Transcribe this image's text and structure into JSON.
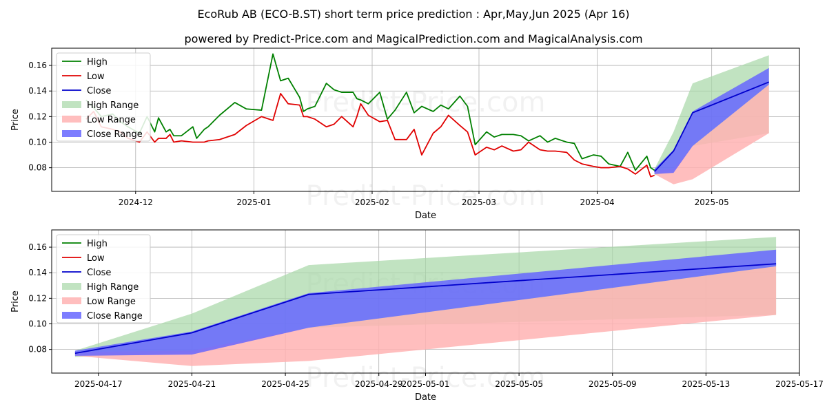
{
  "title": "EcoRub AB (ECO-B.ST) short term price prediction : Apr,May,Jun 2025 (Apr 16)",
  "subtitle": "powered by Predict-Price.com and MagicalPrediction.com and MagicalAnalysis.com",
  "watermark": "Predict-Price.com",
  "colors": {
    "high": "#008000",
    "low": "#e00000",
    "close": "#0000cc",
    "high_range": "#a6d7a6",
    "low_range": "#ffb3b3",
    "close_range": "#6666ff"
  },
  "chart_data": [
    {
      "type": "line",
      "xlabel": "Date",
      "ylabel": "Price",
      "ylim": [
        0.0615,
        0.1735
      ],
      "yticks": [
        0.08,
        0.1,
        0.12,
        0.14,
        0.16
      ],
      "ytick_labels": [
        "0.08",
        "0.10",
        "0.12",
        "0.14",
        "0.16"
      ],
      "xlim": [
        "2024-11-09",
        "2025-05-24"
      ],
      "xticks": [
        "2024-12-01",
        "2025-01-01",
        "2025-02-01",
        "2025-03-01",
        "2025-04-01",
        "2025-05-01"
      ],
      "xtick_labels": [
        "2024-12",
        "2025-01",
        "2025-02",
        "2025-03",
        "2025-04",
        "2025-05"
      ],
      "grid": true,
      "legend_position": "upper-left",
      "legend": [
        "High",
        "Low",
        "Close",
        "High Range",
        "Low Range",
        "Close Range"
      ],
      "series": [
        {
          "name": "High",
          "x": [
            "2024-11-18",
            "2024-11-20",
            "2024-11-22",
            "2024-11-25",
            "2024-11-27",
            "2024-11-29",
            "2024-12-02",
            "2024-12-04",
            "2024-12-06",
            "2024-12-07",
            "2024-12-09",
            "2024-12-10",
            "2024-12-11",
            "2024-12-13",
            "2024-12-16",
            "2024-12-17",
            "2024-12-19",
            "2024-12-20",
            "2024-12-23",
            "2024-12-27",
            "2024-12-30",
            "2025-01-03",
            "2025-01-06",
            "2025-01-08",
            "2025-01-10",
            "2025-01-13",
            "2025-01-14",
            "2025-01-15",
            "2025-01-17",
            "2025-01-20",
            "2025-01-22",
            "2025-01-24",
            "2025-01-27",
            "2025-01-28",
            "2025-01-29",
            "2025-01-31",
            "2025-02-03",
            "2025-02-05",
            "2025-02-07",
            "2025-02-10",
            "2025-02-12",
            "2025-02-14",
            "2025-02-17",
            "2025-02-19",
            "2025-02-21",
            "2025-02-24",
            "2025-02-26",
            "2025-02-28",
            "2025-03-03",
            "2025-03-05",
            "2025-03-07",
            "2025-03-10",
            "2025-03-12",
            "2025-03-14",
            "2025-03-17",
            "2025-03-19",
            "2025-03-21",
            "2025-03-24",
            "2025-03-26",
            "2025-03-28",
            "2025-03-31",
            "2025-04-02",
            "2025-04-04",
            "2025-04-07",
            "2025-04-09",
            "2025-04-11",
            "2025-04-14",
            "2025-04-15",
            "2025-04-16"
          ],
          "values": [
            0.133,
            0.127,
            0.12,
            0.122,
            0.116,
            0.112,
            0.107,
            0.12,
            0.108,
            0.119,
            0.108,
            0.11,
            0.105,
            0.105,
            0.112,
            0.103,
            0.11,
            0.112,
            0.121,
            0.131,
            0.126,
            0.125,
            0.169,
            0.148,
            0.15,
            0.135,
            0.124,
            0.126,
            0.128,
            0.146,
            0.141,
            0.139,
            0.139,
            0.134,
            0.133,
            0.13,
            0.139,
            0.118,
            0.125,
            0.139,
            0.123,
            0.128,
            0.124,
            0.129,
            0.126,
            0.136,
            0.128,
            0.098,
            0.108,
            0.104,
            0.106,
            0.106,
            0.105,
            0.101,
            0.105,
            0.1,
            0.103,
            0.1,
            0.099,
            0.087,
            0.09,
            0.089,
            0.083,
            0.081,
            0.092,
            0.078,
            0.089,
            0.08,
            0.078
          ]
        },
        {
          "name": "Low",
          "x": [
            "2024-11-18",
            "2024-11-20",
            "2024-11-22",
            "2024-11-25",
            "2024-11-27",
            "2024-11-29",
            "2024-12-02",
            "2024-12-04",
            "2024-12-06",
            "2024-12-07",
            "2024-12-09",
            "2024-12-10",
            "2024-12-11",
            "2024-12-13",
            "2024-12-16",
            "2024-12-17",
            "2024-12-19",
            "2024-12-20",
            "2024-12-23",
            "2024-12-27",
            "2024-12-30",
            "2025-01-03",
            "2025-01-06",
            "2025-01-08",
            "2025-01-10",
            "2025-01-13",
            "2025-01-14",
            "2025-01-15",
            "2025-01-17",
            "2025-01-20",
            "2025-01-22",
            "2025-01-24",
            "2025-01-27",
            "2025-01-28",
            "2025-01-29",
            "2025-01-31",
            "2025-02-03",
            "2025-02-05",
            "2025-02-07",
            "2025-02-10",
            "2025-02-12",
            "2025-02-14",
            "2025-02-17",
            "2025-02-19",
            "2025-02-21",
            "2025-02-24",
            "2025-02-26",
            "2025-02-28",
            "2025-03-03",
            "2025-03-05",
            "2025-03-07",
            "2025-03-10",
            "2025-03-12",
            "2025-03-14",
            "2025-03-17",
            "2025-03-19",
            "2025-03-21",
            "2025-03-24",
            "2025-03-26",
            "2025-03-28",
            "2025-03-31",
            "2025-04-02",
            "2025-04-04",
            "2025-04-07",
            "2025-04-09",
            "2025-04-11",
            "2025-04-14",
            "2025-04-15",
            "2025-04-16"
          ],
          "values": [
            0.118,
            0.124,
            0.112,
            0.11,
            0.108,
            0.103,
            0.1,
            0.108,
            0.1,
            0.103,
            0.103,
            0.106,
            0.1,
            0.101,
            0.1,
            0.1,
            0.1,
            0.101,
            0.102,
            0.106,
            0.113,
            0.12,
            0.117,
            0.138,
            0.13,
            0.129,
            0.12,
            0.12,
            0.118,
            0.112,
            0.114,
            0.12,
            0.112,
            0.12,
            0.13,
            0.121,
            0.116,
            0.117,
            0.102,
            0.102,
            0.11,
            0.09,
            0.107,
            0.112,
            0.121,
            0.113,
            0.108,
            0.09,
            0.096,
            0.094,
            0.097,
            0.093,
            0.094,
            0.1,
            0.094,
            0.093,
            0.093,
            0.092,
            0.086,
            0.083,
            0.081,
            0.08,
            0.08,
            0.081,
            0.079,
            0.075,
            0.082,
            0.073,
            0.074
          ]
        },
        {
          "name": "Close",
          "x": [
            "2025-04-16",
            "2025-04-21",
            "2025-04-26",
            "2025-05-16"
          ],
          "values": [
            0.077,
            0.093,
            0.123,
            0.147
          ]
        },
        {
          "name": "High Range",
          "x": [
            "2025-04-16",
            "2025-04-21",
            "2025-04-26",
            "2025-05-16"
          ],
          "upper": [
            0.079,
            0.108,
            0.146,
            0.168
          ],
          "lower": [
            0.074,
            0.078,
            0.097,
            0.107
          ]
        },
        {
          "name": "Low Range",
          "x": [
            "2025-04-16",
            "2025-04-21",
            "2025-04-26",
            "2025-05-16"
          ],
          "upper": [
            0.078,
            0.079,
            0.097,
            0.145
          ],
          "lower": [
            0.075,
            0.067,
            0.071,
            0.107
          ]
        },
        {
          "name": "Close Range",
          "x": [
            "2025-04-16",
            "2025-04-21",
            "2025-04-26",
            "2025-05-16"
          ],
          "upper": [
            0.079,
            0.094,
            0.124,
            0.158
          ],
          "lower": [
            0.075,
            0.076,
            0.097,
            0.145
          ]
        }
      ]
    },
    {
      "type": "line",
      "xlabel": "Date",
      "ylabel": "Price",
      "ylim": [
        0.0615,
        0.1735
      ],
      "yticks": [
        0.08,
        0.1,
        0.12,
        0.14,
        0.16
      ],
      "ytick_labels": [
        "0.08",
        "0.10",
        "0.12",
        "0.14",
        "0.16"
      ],
      "xlim": [
        "2025-04-15",
        "2025-05-17"
      ],
      "xticks": [
        "2025-04-17",
        "2025-04-21",
        "2025-04-25",
        "2025-04-29",
        "2025-05-01",
        "2025-05-05",
        "2025-05-09",
        "2025-05-13",
        "2025-05-17"
      ],
      "xtick_labels": [
        "2025-04-17",
        "2025-04-21",
        "2025-04-25",
        "2025-04-29",
        "2025-05-01",
        "2025-05-05",
        "2025-05-09",
        "2025-05-13",
        "2025-05-17"
      ],
      "grid": true,
      "legend_position": "upper-left",
      "legend": [
        "High",
        "Low",
        "Close",
        "High Range",
        "Low Range",
        "Close Range"
      ],
      "series": [
        {
          "name": "Close",
          "x": [
            "2025-04-16",
            "2025-04-21",
            "2025-04-26",
            "2025-05-16"
          ],
          "values": [
            0.077,
            0.093,
            0.123,
            0.147
          ]
        },
        {
          "name": "High Range",
          "x": [
            "2025-04-16",
            "2025-04-21",
            "2025-04-26",
            "2025-05-16"
          ],
          "upper": [
            0.079,
            0.108,
            0.146,
            0.168
          ],
          "lower": [
            0.074,
            0.078,
            0.097,
            0.107
          ]
        },
        {
          "name": "Low Range",
          "x": [
            "2025-04-16",
            "2025-04-21",
            "2025-04-26",
            "2025-05-16"
          ],
          "upper": [
            0.078,
            0.079,
            0.097,
            0.145
          ],
          "lower": [
            0.075,
            0.067,
            0.071,
            0.107
          ]
        },
        {
          "name": "Close Range",
          "x": [
            "2025-04-16",
            "2025-04-21",
            "2025-04-26",
            "2025-05-16"
          ],
          "upper": [
            0.079,
            0.094,
            0.124,
            0.158
          ],
          "lower": [
            0.075,
            0.076,
            0.097,
            0.145
          ]
        }
      ]
    }
  ]
}
